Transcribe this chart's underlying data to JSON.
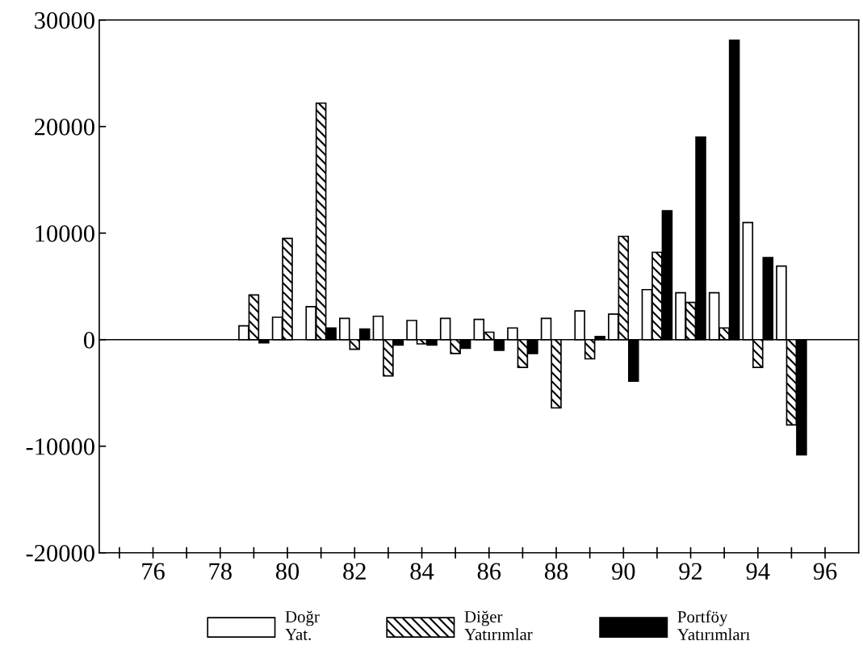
{
  "chart_data": {
    "type": "bar",
    "x": [
      79,
      80,
      81,
      82,
      83,
      84,
      85,
      86,
      87,
      88,
      89,
      90,
      91,
      92,
      93,
      94,
      95
    ],
    "series": [
      {
        "name": "Doğr\nYat.",
        "color": "#ffffff",
        "values": [
          1300,
          2100,
          3100,
          2000,
          2200,
          1800,
          2000,
          1900,
          1100,
          2000,
          2700,
          2400,
          4700,
          4400,
          4400,
          11000,
          6900
        ]
      },
      {
        "name": "Diğer\nYatırımlar",
        "color": "#000000",
        "values": [
          4200,
          9500,
          22200,
          -900,
          -3400,
          -400,
          -1300,
          700,
          -2600,
          -6400,
          -1800,
          9700,
          8200,
          3500,
          1100,
          -2600,
          -8000
        ]
      },
      {
        "name": "Portföy\nYatırımları",
        "color": "#000000",
        "values": [
          -300,
          null,
          1100,
          1000,
          -500,
          -500,
          -800,
          -1000,
          -1300,
          null,
          300,
          -3900,
          12100,
          19000,
          28100,
          7700,
          -10800
        ]
      }
    ],
    "xlim": [
      74.4,
      97
    ],
    "xticks": [
      {
        "value": 75,
        "label": null
      },
      76,
      {
        "value": 77,
        "label": null
      },
      78,
      {
        "value": 79,
        "label": null
      },
      80,
      {
        "value": 81,
        "label": null
      },
      82,
      {
        "value": 83,
        "label": null
      },
      84,
      {
        "value": 85,
        "label": null
      },
      86,
      {
        "value": 87,
        "label": null
      },
      88,
      {
        "value": 89,
        "label": null
      },
      90,
      {
        "value": 91,
        "label": null
      },
      92,
      {
        "value": 93,
        "label": null
      },
      94,
      {
        "value": 95,
        "label": null
      },
      96
    ],
    "ylim": [
      -20000,
      30000
    ],
    "yticks": [
      -20000,
      -10000,
      0,
      10000,
      20000,
      30000
    ],
    "ref_lines": [
      {
        "axis": "y",
        "value": 0
      }
    ],
    "grid": false,
    "legend": "bottom"
  }
}
